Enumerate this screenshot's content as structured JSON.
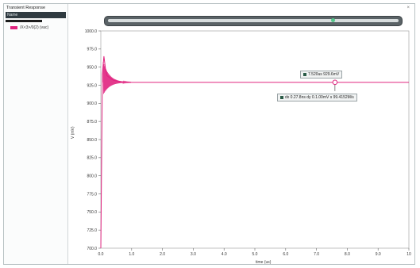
{
  "window": {
    "title": "Transient Response",
    "close_glyph": "×"
  },
  "left_panel": {
    "subheader": "Name",
    "legend": [
      {
        "name": "/X<3>/0(2) (vac)",
        "color": "#e0247f"
      }
    ]
  },
  "chart_data": {
    "type": "line",
    "x_label": "time (us)",
    "y_label": "V (mV)",
    "x_ticks": [
      "0.0",
      "0.1",
      "1.0",
      "2.0",
      "3.0",
      "4.0",
      "5.0",
      "6.0",
      "7.0",
      "8.0",
      "9.0",
      "10"
    ],
    "y_ticks": [
      "1000.0",
      "975.0",
      "950.0",
      "925.0",
      "900.0",
      "875.0",
      "850.0",
      "825.0",
      "800.0",
      "775.0",
      "750.0",
      "725.0",
      "700.0"
    ],
    "xlim": [
      0,
      10
    ],
    "ylim": [
      700,
      1000
    ],
    "series": [
      {
        "name": "/X<3>/0(2) (vac)",
        "color": "#e0247f",
        "x": [
          0.0,
          0.05,
          0.1,
          0.15,
          0.2,
          0.3,
          0.4,
          0.5,
          0.6,
          0.8,
          1.0,
          1.5,
          2.0,
          3.0,
          4.0,
          5.0,
          6.0,
          7.0,
          8.0,
          9.0,
          10.0
        ],
        "y": [
          700,
          940,
          965,
          948,
          938,
          935,
          932,
          931,
          930,
          929.5,
          929,
          929,
          929,
          929,
          929,
          929,
          929,
          929,
          929,
          929,
          929
        ]
      }
    ],
    "marker": {
      "x": 7.6,
      "y": 929,
      "label": "7.520us 929.6mV"
    },
    "delta_label": "dx 0.27.8ns dy 0.1.00mV s 99.4152M/s"
  }
}
